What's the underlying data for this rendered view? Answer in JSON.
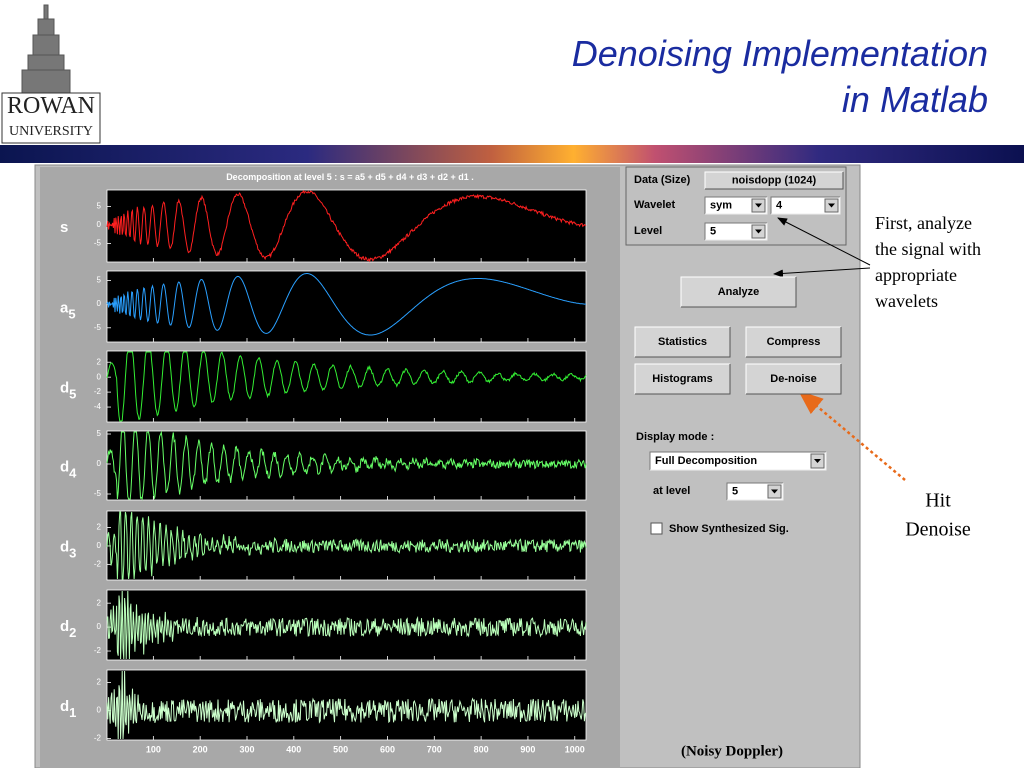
{
  "header": {
    "title_lines": [
      "Denoising Implementation",
      "in Matlab"
    ],
    "logo": [
      "ROWAN",
      "UNIVERSITY"
    ]
  },
  "plot_panel": {
    "title": "Decomposition at level 5 : s = a5 + d5 + d4 + d3 + d2 + d1 .",
    "xlim": [
      1,
      1024
    ],
    "xticks": [
      100,
      200,
      300,
      400,
      500,
      600,
      700,
      800,
      900,
      1000
    ],
    "plots": [
      {
        "label": "s",
        "ylim": [
          -10,
          9.5
        ],
        "yticks": [
          5,
          0,
          -5
        ],
        "color": "#ff2020"
      },
      {
        "label": "a",
        "subscript": "5",
        "ylim": [
          -8,
          7
        ],
        "yticks": [
          5,
          0,
          -5
        ],
        "color": "#2aa0ff"
      },
      {
        "label": "d",
        "subscript": "5",
        "ylim": [
          -6,
          3.5
        ],
        "yticks": [
          2,
          0,
          -2,
          -4
        ],
        "color": "#33ee33"
      },
      {
        "label": "d",
        "subscript": "4",
        "ylim": [
          -6,
          5.5
        ],
        "yticks": [
          5,
          0,
          -5
        ],
        "color": "#66ff66"
      },
      {
        "label": "d",
        "subscript": "3",
        "ylim": [
          -3.7,
          3.8
        ],
        "yticks": [
          2,
          0,
          -2
        ],
        "color": "#99ff99"
      },
      {
        "label": "d",
        "subscript": "2",
        "ylim": [
          -2.75,
          3.1
        ],
        "yticks": [
          2,
          0,
          -2
        ],
        "color": "#bbffbb"
      },
      {
        "label": "d",
        "subscript": "1",
        "ylim": [
          -2.1,
          2.9
        ],
        "yticks": [
          2,
          0,
          -2
        ],
        "color": "#ccffcc"
      }
    ]
  },
  "controls": {
    "data_label": "Data  (Size)",
    "data_value": "noisdopp  (1024)",
    "wavelet_label": "Wavelet",
    "wavelet_family": "sym",
    "wavelet_order": "4",
    "level_label": "Level",
    "level_value": "5",
    "analyze": "Analyze",
    "statistics": "Statistics",
    "compress": "Compress",
    "histograms": "Histograms",
    "denoise": "De-noise",
    "display_mode_label": "Display mode :",
    "display_mode_value": "Full Decomposition",
    "at_level_label": "at level",
    "at_level_value": "5",
    "synth_checkbox": "Show Synthesized Sig."
  },
  "annotations": {
    "analyze_note": [
      "First, analyze",
      "the signal with",
      "appropriate",
      "wavelets"
    ],
    "denoise_note": [
      "Hit",
      "Denoise"
    ],
    "caption": "(Noisy Doppler)"
  }
}
